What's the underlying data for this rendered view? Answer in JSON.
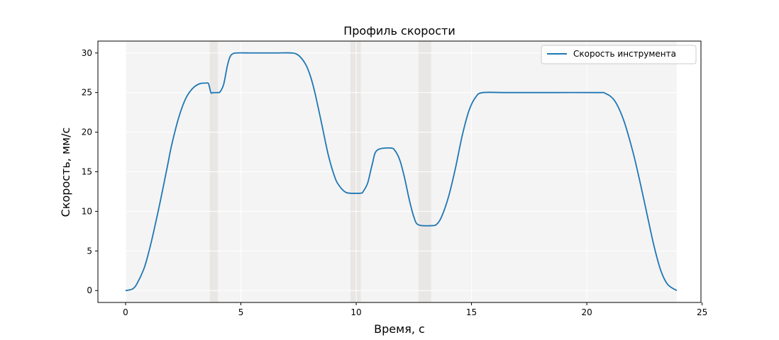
{
  "chart_data": {
    "type": "line",
    "title": "Профиль скорости",
    "xlabel": "Время, с",
    "ylabel": "Скорость, мм/с",
    "xlim": [
      -1.2,
      24.95
    ],
    "ylim": [
      -1.5,
      31.5
    ],
    "xticks": [
      0,
      5,
      10,
      15,
      20,
      25
    ],
    "yticks": [
      0,
      5,
      10,
      15,
      20,
      25,
      30
    ],
    "grid": true,
    "legend_position": "top-right",
    "background_region": [
      0,
      23.9
    ],
    "shaded_bands": [
      [
        3.65,
        4.0
      ],
      [
        9.75,
        10.2
      ],
      [
        12.7,
        13.25
      ]
    ],
    "series": [
      {
        "name": "Скорость инструмента",
        "color": "#1f77b4",
        "x": [
          0,
          0.3,
          0.5,
          0.8,
          1.0,
          1.2,
          1.5,
          1.8,
          2.0,
          2.3,
          2.6,
          2.9,
          3.2,
          3.5,
          3.6,
          3.7,
          3.8,
          4.0,
          4.1,
          4.25,
          4.4,
          4.5,
          4.6,
          4.8,
          5.5,
          6.5,
          7.2,
          7.5,
          7.8,
          8.0,
          8.2,
          8.5,
          8.8,
          9.1,
          9.3,
          9.5,
          9.7,
          10.2,
          10.3,
          10.5,
          10.7,
          10.9,
          11.5,
          11.7,
          11.9,
          12.1,
          12.3,
          12.5,
          12.7,
          13.3,
          13.5,
          13.7,
          14.0,
          14.3,
          14.6,
          14.9,
          15.2,
          15.5,
          16.5,
          18.5,
          20.5,
          20.8,
          21.2,
          21.6,
          22.0,
          22.3,
          22.6,
          22.9,
          23.2,
          23.5,
          23.9
        ],
        "y": [
          0,
          0.2,
          0.9,
          2.8,
          4.8,
          7.2,
          11.2,
          15.5,
          18.4,
          21.8,
          24.2,
          25.5,
          26.1,
          26.2,
          26.1,
          25.0,
          25.0,
          25.0,
          25.1,
          26.0,
          28.2,
          29.3,
          29.8,
          30.0,
          30.0,
          30.0,
          30.0,
          29.7,
          28.6,
          27.2,
          25.1,
          21.1,
          17.0,
          14.1,
          13.1,
          12.5,
          12.3,
          12.3,
          12.5,
          13.6,
          16.0,
          17.7,
          18.0,
          17.6,
          16.4,
          14.2,
          11.5,
          9.3,
          8.3,
          8.2,
          8.4,
          9.3,
          11.8,
          15.4,
          19.6,
          22.8,
          24.5,
          25.0,
          25.0,
          25.0,
          25.0,
          24.9,
          24.0,
          21.5,
          17.5,
          13.8,
          9.8,
          5.8,
          2.6,
          0.8,
          0
        ]
      }
    ]
  }
}
